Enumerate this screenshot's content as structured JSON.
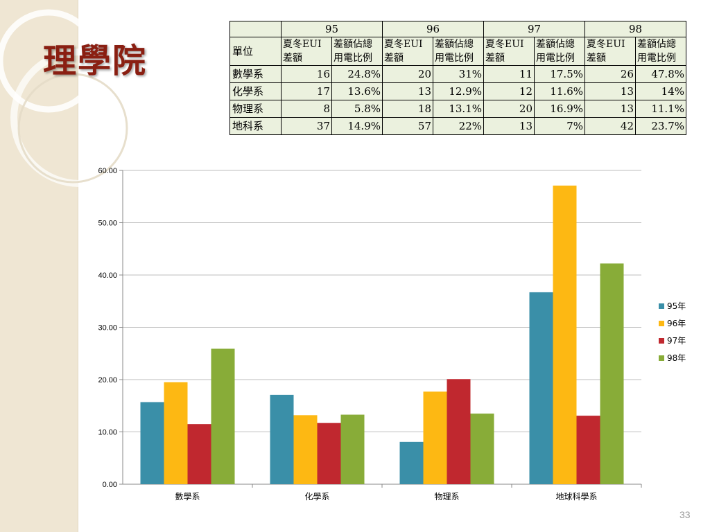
{
  "slide": {
    "title": "理學院",
    "page_number": "33"
  },
  "table": {
    "years": [
      "95",
      "96",
      "97",
      "98"
    ],
    "unit_header": "單位",
    "col_header_a": "夏冬EUI差額",
    "col_header_b": "差額佔總用電比例",
    "rows": [
      {
        "unit": "數學系",
        "values": [
          "16",
          "24.8%",
          "20",
          "31%",
          "11",
          "17.5%",
          "26",
          "47.8%"
        ]
      },
      {
        "unit": "化學系",
        "values": [
          "17",
          "13.6%",
          "13",
          "12.9%",
          "12",
          "11.6%",
          "13",
          "14%"
        ]
      },
      {
        "unit": "物理系",
        "values": [
          "8",
          "5.8%",
          "18",
          "13.1%",
          "20",
          "16.9%",
          "13",
          "11.1%"
        ]
      },
      {
        "unit": "地科系",
        "values": [
          "37",
          "14.9%",
          "57",
          "22%",
          "13",
          "7%",
          "42",
          "23.7%"
        ]
      }
    ]
  },
  "chart_data": {
    "type": "bar",
    "categories": [
      "數學系",
      "化學系",
      "物理系",
      "地球科學系"
    ],
    "series": [
      {
        "name": "95年",
        "color": "#3a8fa8",
        "values": [
          15.7,
          17.1,
          8.1,
          36.7
        ]
      },
      {
        "name": "96年",
        "color": "#fdb813",
        "values": [
          19.5,
          13.2,
          17.7,
          57.1
        ]
      },
      {
        "name": "97年",
        "color": "#c0282f",
        "values": [
          11.5,
          11.7,
          20.1,
          13.1
        ]
      },
      {
        "name": "98年",
        "color": "#88ac38",
        "values": [
          25.9,
          13.3,
          13.5,
          42.2
        ]
      }
    ],
    "ylim": [
      0,
      60
    ],
    "yticks": [
      "0.00",
      "10.00",
      "20.00",
      "30.00",
      "40.00",
      "50.00",
      "60.00"
    ],
    "grid": true,
    "legend_position": "right"
  }
}
